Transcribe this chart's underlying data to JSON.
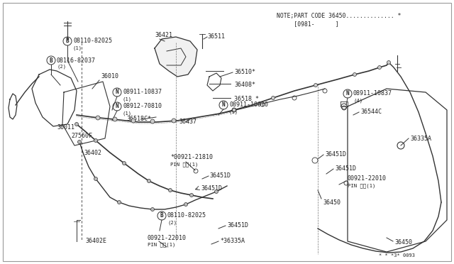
{
  "bg_color": "#ffffff",
  "border_color": "#888888",
  "line_color": "#333333",
  "text_color": "#222222",
  "note_line1": "NOTE;PART CODE 36450.............. *",
  "note_line2": "     [0981-      ]",
  "footer_text": "* * *3* 0093",
  "fig_width": 6.4,
  "fig_height": 3.72,
  "dpi": 100
}
